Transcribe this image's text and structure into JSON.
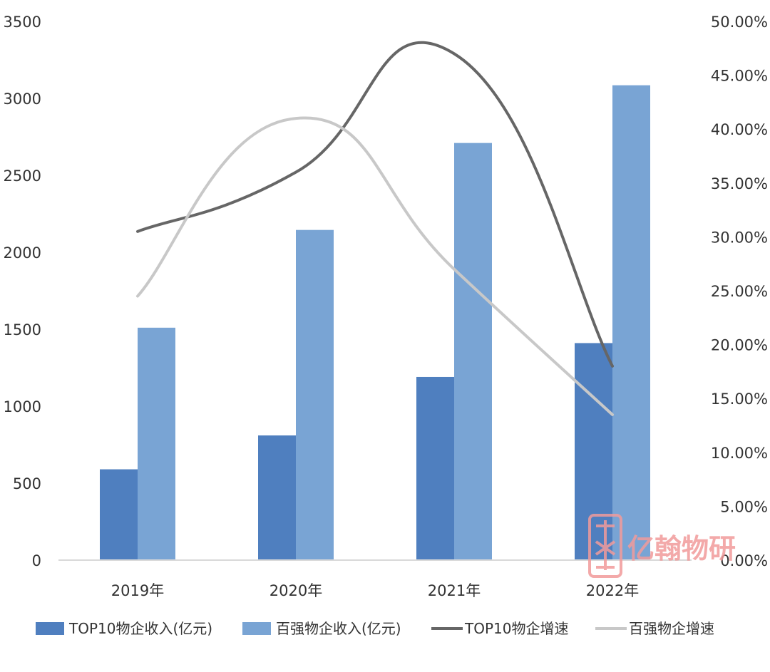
{
  "chart_data": {
    "type": "bar",
    "categories": [
      "2019年",
      "2020年",
      "2021年",
      "2022年"
    ],
    "series": [
      {
        "name": "TOP10物企收入(亿元)",
        "kind": "bar",
        "axis": "left",
        "color": "#4f7fbf",
        "values": [
          590,
          810,
          1190,
          1410
        ]
      },
      {
        "name": "百强物企收入(亿元)",
        "kind": "bar",
        "axis": "left",
        "color": "#79a4d4",
        "values": [
          1510,
          2145,
          2710,
          3085
        ]
      },
      {
        "name": "TOP10物企增速",
        "kind": "line",
        "axis": "right",
        "color": "#666666",
        "values": [
          0.305,
          0.36,
          0.47,
          0.18
        ]
      },
      {
        "name": "百强物企增速",
        "kind": "line",
        "axis": "right",
        "color": "#c8c8c8",
        "values": [
          0.245,
          0.41,
          0.27,
          0.135
        ]
      }
    ],
    "y_left": {
      "range": [
        0,
        3500
      ],
      "ticks": [
        "0",
        "500",
        "1000",
        "1500",
        "2000",
        "2500",
        "3000",
        "3500"
      ]
    },
    "y_right": {
      "range": [
        0,
        0.5
      ],
      "ticks": [
        "0.00%",
        "5.00%",
        "10.00%",
        "15.00%",
        "20.00%",
        "25.00%",
        "30.00%",
        "35.00%",
        "40.00%",
        "45.00%",
        "50.00%"
      ]
    },
    "legend_position": "bottom",
    "grid": false
  },
  "watermark": {
    "text": "亿翰物研",
    "logo": "yihan-seal-icon",
    "color": "#f19b9b"
  }
}
